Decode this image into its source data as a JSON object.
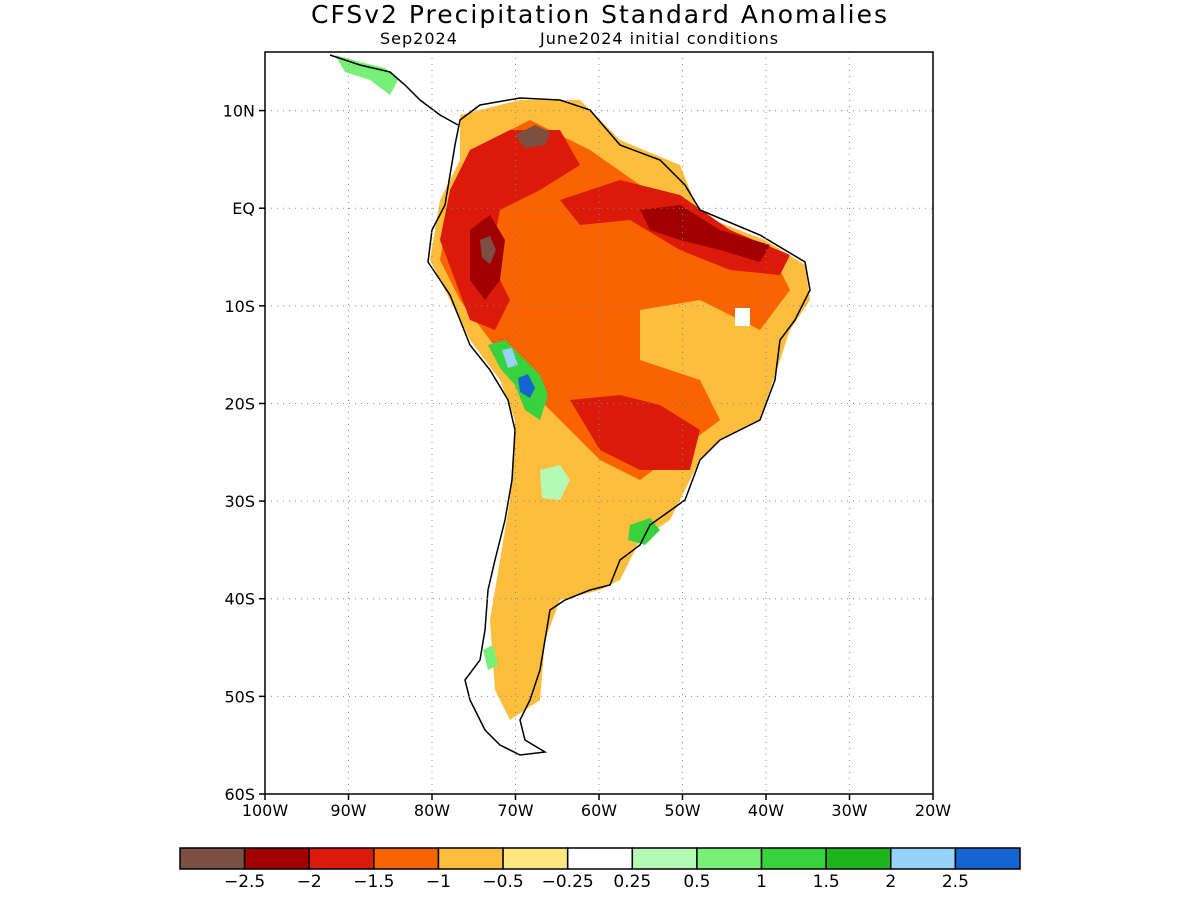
{
  "title": "CFSv2 Precipitation Standard Anomalies",
  "subtitle_left": "Sep2024",
  "subtitle_right": "June2024 initial conditions",
  "map": {
    "lon_range": [
      -100,
      -20
    ],
    "lat_range": [
      -60,
      16
    ],
    "gridlines": "dotted",
    "lat_ticks": [
      {
        "lat": 10,
        "label": "10N"
      },
      {
        "lat": 0,
        "label": "EQ"
      },
      {
        "lat": -10,
        "label": "10S"
      },
      {
        "lat": -20,
        "label": "20S"
      },
      {
        "lat": -30,
        "label": "30S"
      },
      {
        "lat": -40,
        "label": "40S"
      },
      {
        "lat": -50,
        "label": "50S"
      },
      {
        "lat": -60,
        "label": "60S"
      }
    ],
    "lon_ticks": [
      {
        "lon": -100,
        "label": "100W"
      },
      {
        "lon": -90,
        "label": "90W"
      },
      {
        "lon": -80,
        "label": "80W"
      },
      {
        "lon": -70,
        "label": "70W"
      },
      {
        "lon": -60,
        "label": "60W"
      },
      {
        "lon": -50,
        "label": "50W"
      },
      {
        "lon": -40,
        "label": "40W"
      },
      {
        "lon": -30,
        "label": "30W"
      },
      {
        "lon": -20,
        "label": "20W"
      }
    ]
  },
  "colorbar": {
    "colors": [
      "#7b5042",
      "#a00000",
      "#dc1a0a",
      "#fa6400",
      "#fcbe3c",
      "#ffe680",
      "#ffffff",
      "#b4fab4",
      "#78f078",
      "#37d23c",
      "#1eb41e",
      "#96d2fa",
      "#1464d2"
    ],
    "labels": [
      "−2.5",
      "−2",
      "−1.5",
      "−1",
      "−0.5",
      "−0.25",
      "0.25",
      "0.5",
      "1",
      "1.5",
      "2",
      "2.5"
    ]
  }
}
